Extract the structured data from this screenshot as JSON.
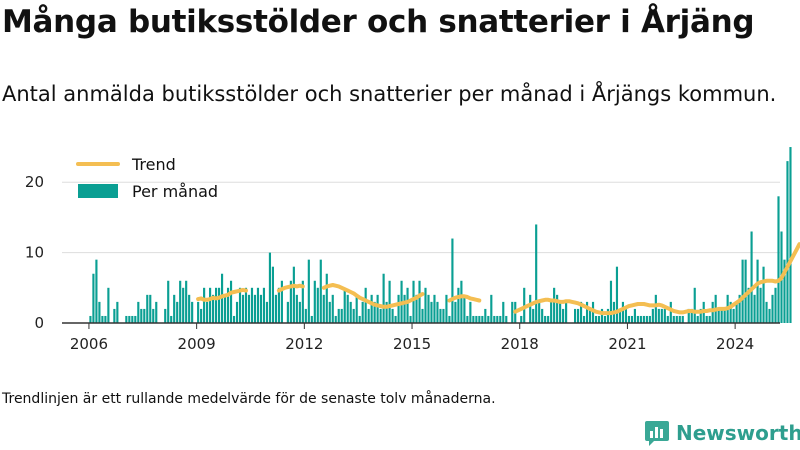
{
  "header": {
    "title": "Många butiksstölder och snatterier i Årjäng",
    "subtitle": "Antal anmälda butiksstölder och snatterier per månad i Årjängs kommun."
  },
  "footer": {
    "note": "Trendlinjen är ett rullande medelvärde för de senaste tolv månaderna.",
    "brand": "Newsworthy"
  },
  "colors": {
    "bars": "#0a9f93",
    "trend": "#f4be52",
    "grid": "#dddddd",
    "axis": "#333333",
    "brand": "#2e9e8e"
  },
  "chart_data": {
    "type": "bar",
    "x_unit": "months",
    "x_start": "2006-01",
    "x_end": "2024-05",
    "xlim": [
      "2005-06",
      "2025-04"
    ],
    "ylim": [
      0,
      26
    ],
    "y_ticks": [
      0,
      10,
      20
    ],
    "x_ticks": [
      "2006",
      "2009",
      "2012",
      "2015",
      "2018",
      "2021",
      "2024"
    ],
    "grid": true,
    "legend_position": "top-left",
    "legend": {
      "trend": "Trend",
      "bars": "Per månad"
    },
    "series": [
      {
        "name": "Per månad",
        "kind": "bar",
        "values": [
          1,
          7,
          9,
          3,
          1,
          1,
          5,
          0,
          2,
          3,
          0,
          0,
          1,
          1,
          1,
          1,
          3,
          2,
          2,
          4,
          4,
          2,
          3,
          0,
          0,
          2,
          6,
          1,
          4,
          3,
          6,
          5,
          6,
          4,
          3,
          0,
          3,
          2,
          5,
          3,
          5,
          4,
          5,
          5,
          7,
          4,
          5,
          6,
          1,
          3,
          5,
          4,
          5,
          4,
          5,
          4,
          5,
          4,
          5,
          3,
          10,
          8,
          4,
          5,
          6,
          0,
          3,
          6,
          8,
          4,
          3,
          6,
          2,
          9,
          1,
          6,
          5,
          9,
          4,
          7,
          3,
          4,
          1,
          2,
          2,
          5,
          4,
          3,
          2,
          4,
          1,
          3,
          5,
          2,
          4,
          3,
          4,
          2,
          7,
          3,
          6,
          2,
          1,
          4,
          6,
          4,
          5,
          1,
          6,
          4,
          6,
          2,
          5,
          4,
          3,
          4,
          3,
          2,
          2,
          4,
          1,
          12,
          3,
          5,
          6,
          4,
          1,
          3,
          1,
          1,
          1,
          1,
          2,
          1,
          4,
          1,
          1,
          1,
          3,
          1,
          0,
          3,
          3,
          0,
          1,
          5,
          0,
          4,
          2,
          14,
          3,
          2,
          1,
          1,
          3,
          5,
          4,
          3,
          2,
          3,
          0,
          0,
          2,
          2,
          3,
          1,
          3,
          2,
          3,
          1,
          1,
          2,
          1,
          2,
          6,
          3,
          8,
          2,
          3,
          2,
          1,
          1,
          2,
          1,
          1,
          1,
          1,
          1,
          2,
          4,
          2,
          2,
          2,
          1,
          3,
          1,
          1,
          1,
          1,
          0,
          2,
          2,
          5,
          1,
          2,
          3,
          1,
          1,
          3,
          4,
          2,
          2,
          2,
          4,
          3,
          2,
          3,
          4,
          9,
          9,
          5,
          13,
          4,
          9,
          5,
          8,
          3,
          2,
          4,
          5,
          18,
          13,
          9,
          23,
          25
        ]
      },
      {
        "name": "Trend",
        "kind": "line",
        "segments": [
          {
            "start": "2009-01",
            "values": [
              3.4,
              3.5,
              3.3,
              3.3,
              3.4,
              3.6,
              3.5,
              3.6,
              3.8,
              3.9,
              4.0,
              4.3,
              4.4,
              4.5,
              4.6,
              4.7,
              4.6
            ]
          },
          {
            "start": "2011-04",
            "values": [
              4.6,
              4.8,
              5.0,
              5.1,
              5.2,
              5.3,
              5.2,
              5.3,
              5.2
            ]
          },
          {
            "start": "2012-07",
            "values": [
              5.0,
              5.2,
              5.3,
              5.4,
              5.3,
              5.2,
              5.0,
              4.8,
              4.6,
              4.4,
              4.2,
              3.9,
              3.6,
              3.4,
              3.2,
              3.0,
              2.8,
              2.6,
              2.5,
              2.4,
              2.3,
              2.3,
              2.4,
              2.5,
              2.6,
              2.7,
              2.8,
              2.9,
              3.0,
              3.2,
              3.4,
              3.6,
              3.9,
              4.1
            ]
          },
          {
            "start": "2016-01",
            "values": [
              3.2,
              3.4,
              3.6,
              3.7,
              3.8,
              3.8,
              3.7,
              3.5,
              3.4,
              3.3,
              3.2
            ]
          },
          {
            "start": "2017-11",
            "values": [
              1.6,
              1.8,
              2.0,
              2.2,
              2.4,
              2.6,
              2.8,
              3.0,
              3.1,
              3.2,
              3.3,
              3.3,
              3.2,
              3.2,
              3.1,
              3.0,
              3.0,
              3.1,
              3.1,
              3.0,
              2.9,
              2.8,
              2.6,
              2.4,
              2.2,
              2.0,
              1.8,
              1.6,
              1.5,
              1.4,
              1.4,
              1.4,
              1.4,
              1.5,
              1.6,
              1.8,
              2.0,
              2.2,
              2.4,
              2.5,
              2.6,
              2.7,
              2.7,
              2.7,
              2.6,
              2.5,
              2.5,
              2.5,
              2.6,
              2.5,
              2.3,
              2.1,
              1.9,
              1.7,
              1.6,
              1.5,
              1.5,
              1.6,
              1.7,
              1.7,
              1.6,
              1.6,
              1.6,
              1.7,
              1.7,
              1.8,
              1.8,
              1.9,
              2.0,
              2.0,
              2.0,
              2.1,
              2.3,
              2.6,
              2.9,
              3.2,
              3.6,
              4.0,
              4.4,
              4.8,
              5.2,
              5.6,
              5.8,
              5.9,
              6.0,
              6.0,
              6.0,
              5.9,
              6.0,
              6.4,
              7.2,
              8.0,
              8.8,
              9.6,
              10.4,
              11.2
            ]
          }
        ]
      }
    ]
  }
}
